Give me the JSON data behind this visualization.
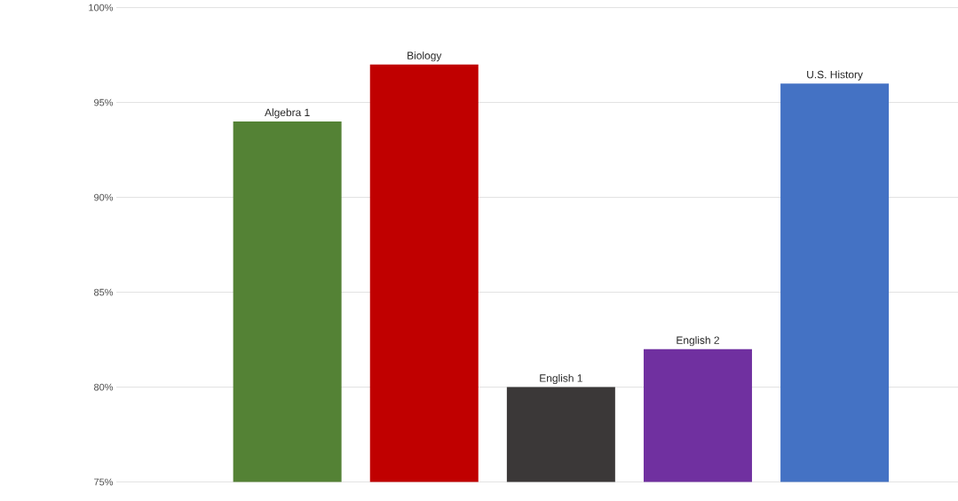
{
  "chart_data": {
    "type": "bar",
    "categories": [
      "Algebra 1",
      "Biology",
      "English 1",
      "English 2",
      "U.S. History"
    ],
    "values": [
      94,
      97,
      80,
      82,
      96
    ],
    "colors": [
      "#548235",
      "#c00000",
      "#3b3838",
      "#7030a0",
      "#4472c4"
    ],
    "ylim": [
      75,
      100
    ],
    "yticks": [
      {
        "value": 75,
        "label": "75%"
      },
      {
        "value": 80,
        "label": "80%"
      },
      {
        "value": 85,
        "label": "85%"
      },
      {
        "value": 90,
        "label": "90%"
      },
      {
        "value": 95,
        "label": "95%"
      },
      {
        "value": 100,
        "label": "100%"
      }
    ],
    "grid": "y"
  }
}
